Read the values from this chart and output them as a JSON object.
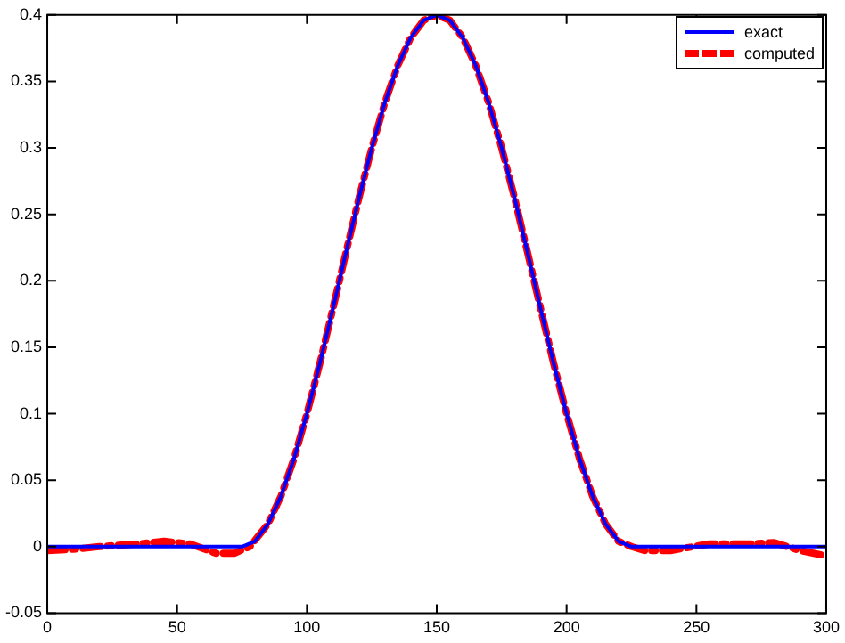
{
  "chart_data": {
    "type": "line",
    "legend": "top right",
    "xlim": [
      0,
      300
    ],
    "ylim": [
      -0.05,
      0.4
    ],
    "xticks": [
      0,
      50,
      100,
      150,
      200,
      250,
      300
    ],
    "yticks": [
      -0.05,
      0,
      0.05,
      0.1,
      0.15,
      0.2,
      0.25,
      0.3,
      0.35,
      0.4
    ],
    "series": [
      {
        "name": "exact",
        "color": "#0000ff",
        "line_style": "solid",
        "x": [
          0,
          75,
          80,
          85,
          90,
          95,
          100,
          105,
          110,
          115,
          120,
          125,
          130,
          135,
          140,
          145,
          150,
          155,
          160,
          165,
          170,
          175,
          180,
          185,
          190,
          195,
          200,
          205,
          210,
          215,
          220,
          225,
          300
        ],
        "values": [
          0,
          0,
          0.004,
          0.017,
          0.038,
          0.066,
          0.1,
          0.138,
          0.179,
          0.221,
          0.262,
          0.3,
          0.334,
          0.362,
          0.383,
          0.396,
          0.4,
          0.396,
          0.383,
          0.362,
          0.334,
          0.3,
          0.262,
          0.221,
          0.179,
          0.138,
          0.1,
          0.066,
          0.038,
          0.017,
          0.004,
          0,
          0
        ]
      },
      {
        "name": "computed",
        "color": "#ff0000",
        "line_style": "dashed",
        "x": [
          0,
          10,
          20,
          35,
          45,
          55,
          65,
          72,
          78,
          85,
          90,
          95,
          100,
          105,
          110,
          115,
          120,
          125,
          130,
          135,
          140,
          145,
          150,
          155,
          160,
          165,
          170,
          175,
          180,
          185,
          190,
          195,
          200,
          205,
          210,
          215,
          220,
          225,
          230,
          240,
          255,
          270,
          280,
          290,
          300
        ],
        "values": [
          -0.003,
          -0.002,
          0,
          0.002,
          0.004,
          0.002,
          -0.005,
          -0.005,
          0,
          0.017,
          0.038,
          0.066,
          0.1,
          0.138,
          0.179,
          0.221,
          0.262,
          0.3,
          0.334,
          0.362,
          0.383,
          0.396,
          0.4,
          0.396,
          0.383,
          0.362,
          0.334,
          0.3,
          0.262,
          0.221,
          0.179,
          0.138,
          0.1,
          0.066,
          0.038,
          0.017,
          0.004,
          0,
          -0.003,
          -0.003,
          0.002,
          0.002,
          0.003,
          -0.003,
          -0.007
        ]
      }
    ]
  }
}
